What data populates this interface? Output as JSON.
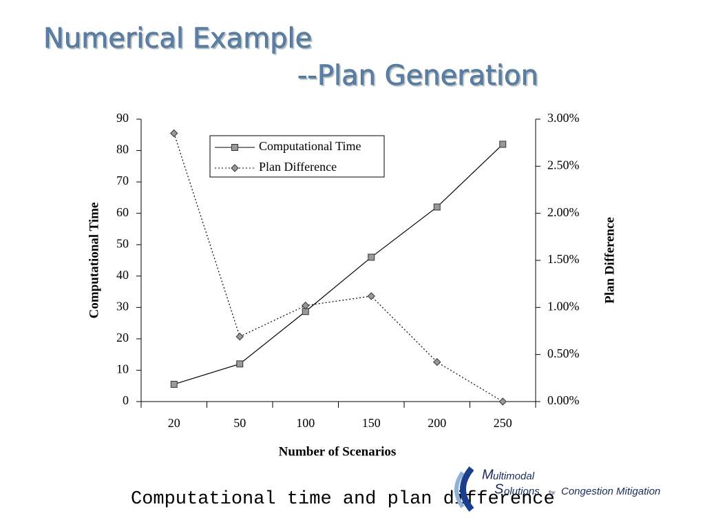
{
  "title": {
    "line1": "Numerical Example",
    "line2": "--Plan Generation"
  },
  "chart_data": {
    "type": "line",
    "categories": [
      "20",
      "50",
      "100",
      "150",
      "200",
      "250"
    ],
    "series": [
      {
        "name": "Computational Time",
        "color": "#000000",
        "marker": "square",
        "dash": "none",
        "values": [
          5.5,
          12,
          28.7,
          46,
          62,
          82
        ]
      },
      {
        "name": "Plan Difference",
        "color": "#000000",
        "marker": "diamond",
        "dash": "2,3",
        "axis": "y2",
        "values": [
          2.85,
          0.69,
          1.02,
          1.12,
          0.42,
          0
        ]
      }
    ],
    "ylim": [
      0,
      90
    ],
    "yticks": [
      0,
      10,
      20,
      30,
      40,
      50,
      60,
      70,
      80,
      90
    ],
    "y2lim": [
      0,
      3
    ],
    "y2ticks": [
      {
        "value": 0,
        "label": "0.00%"
      },
      {
        "value": 0.5,
        "label": "0.50%"
      },
      {
        "value": 1,
        "label": "1.00%"
      },
      {
        "value": 1.5,
        "label": "1.50%"
      },
      {
        "value": 2,
        "label": "2.00%"
      },
      {
        "value": 2.5,
        "label": "2.50%"
      },
      {
        "value": 3,
        "label": "3.00%"
      }
    ],
    "xlabel": "Number of Scenarios",
    "ylabel": "Computational Time",
    "y2label": "Plan Difference",
    "marker_fill": "#999999"
  },
  "caption": "Computational time and plan difference",
  "logo": {
    "m": "M",
    "m_rest": "ultimodal",
    "s": "S",
    "s_rest": "olutions",
    "for": "for",
    "rest": "Congestion Mitigation"
  }
}
